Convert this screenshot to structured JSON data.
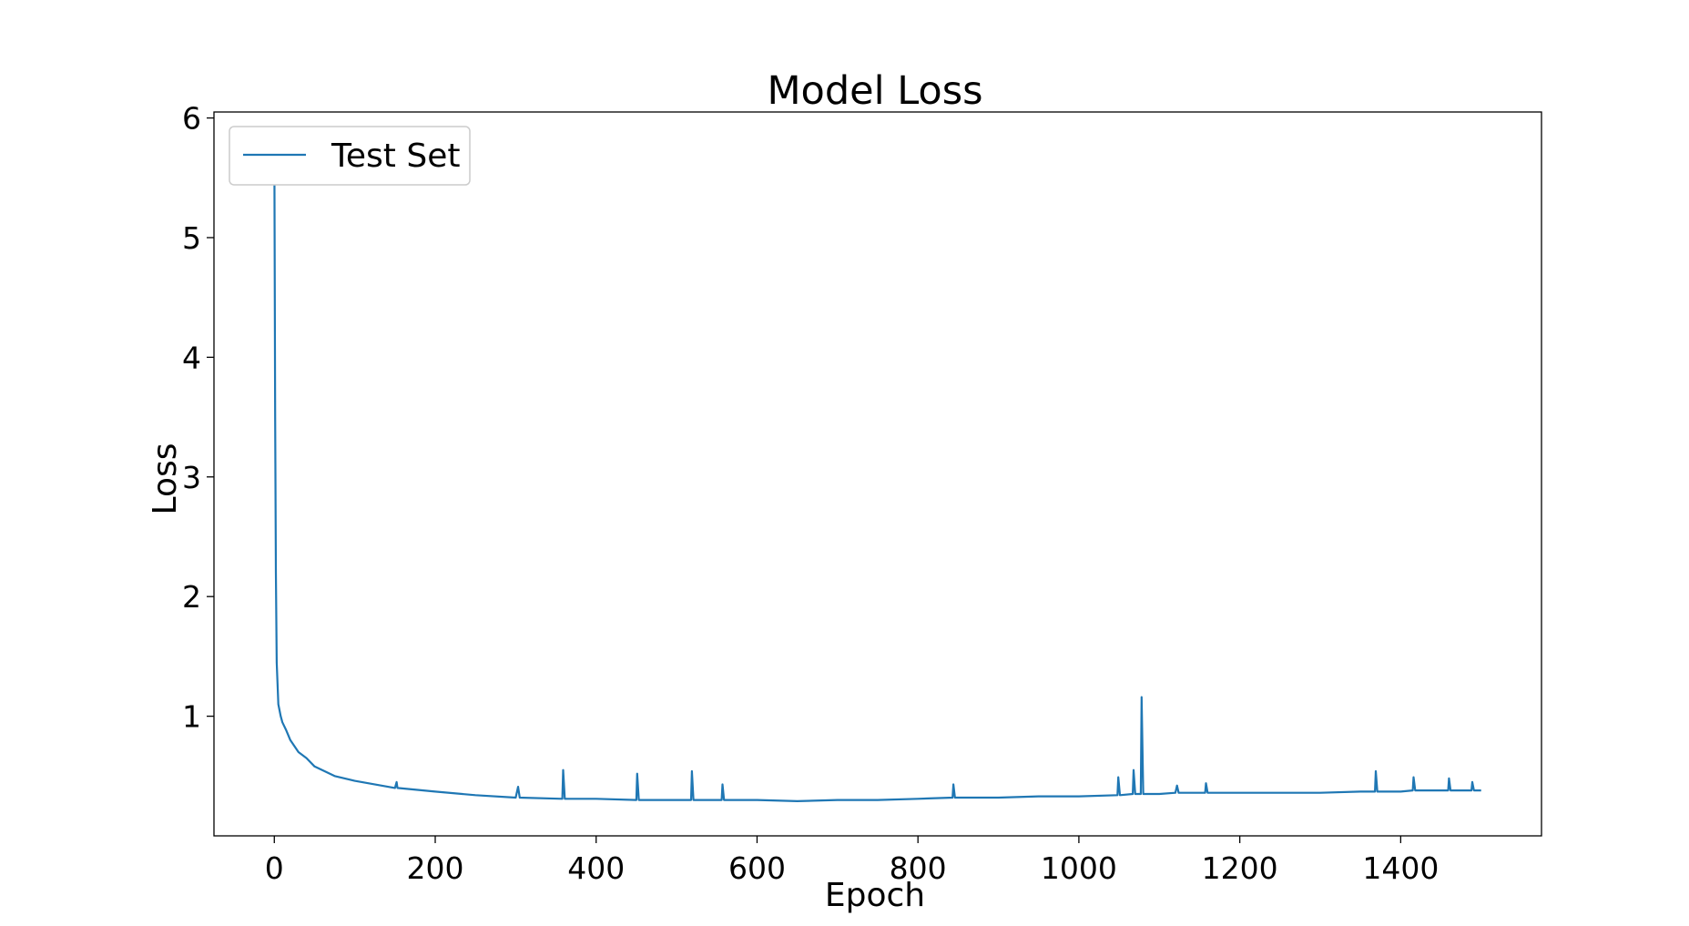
{
  "chart_data": {
    "type": "line",
    "title": "Model Loss",
    "xlabel": "Epoch",
    "ylabel": "Loss",
    "xlim": [
      -75,
      1575
    ],
    "ylim": [
      0.0,
      6.05
    ],
    "xticks": [
      0,
      200,
      400,
      600,
      800,
      1000,
      1200,
      1400
    ],
    "yticks": [
      1,
      2,
      3,
      4,
      5,
      6
    ],
    "grid": false,
    "legend_position": "top-left",
    "series": [
      {
        "name": "Test Set",
        "color": "#1f77b4",
        "x": [
          0,
          1,
          2,
          3,
          5,
          8,
          10,
          15,
          20,
          30,
          40,
          50,
          75,
          100,
          150,
          152,
          153,
          200,
          250,
          300,
          303,
          305,
          358,
          359,
          361,
          400,
          450,
          451,
          453,
          500,
          518,
          519,
          521,
          556,
          557,
          559,
          600,
          650,
          700,
          750,
          800,
          843,
          844,
          846,
          850,
          900,
          950,
          1000,
          1048,
          1049,
          1051,
          1067,
          1068,
          1070,
          1077,
          1078,
          1080,
          1100,
          1120,
          1122,
          1124,
          1150,
          1157,
          1158,
          1160,
          1200,
          1250,
          1300,
          1350,
          1368,
          1369,
          1371,
          1400,
          1415,
          1416,
          1418,
          1450,
          1459,
          1460,
          1462,
          1488,
          1489,
          1491,
          1500
        ],
        "y": [
          5.8,
          3.5,
          2.2,
          1.45,
          1.1,
          1.0,
          0.95,
          0.88,
          0.8,
          0.7,
          0.65,
          0.58,
          0.5,
          0.46,
          0.4,
          0.45,
          0.4,
          0.37,
          0.34,
          0.32,
          0.41,
          0.32,
          0.31,
          0.55,
          0.31,
          0.31,
          0.3,
          0.52,
          0.3,
          0.3,
          0.3,
          0.54,
          0.3,
          0.3,
          0.43,
          0.3,
          0.3,
          0.29,
          0.3,
          0.3,
          0.31,
          0.32,
          0.43,
          0.32,
          0.32,
          0.32,
          0.33,
          0.33,
          0.34,
          0.49,
          0.34,
          0.35,
          0.55,
          0.35,
          0.35,
          1.16,
          0.35,
          0.35,
          0.36,
          0.42,
          0.36,
          0.36,
          0.36,
          0.44,
          0.36,
          0.36,
          0.36,
          0.36,
          0.37,
          0.37,
          0.54,
          0.37,
          0.37,
          0.38,
          0.49,
          0.38,
          0.38,
          0.38,
          0.48,
          0.38,
          0.38,
          0.45,
          0.38,
          0.38
        ]
      }
    ]
  }
}
